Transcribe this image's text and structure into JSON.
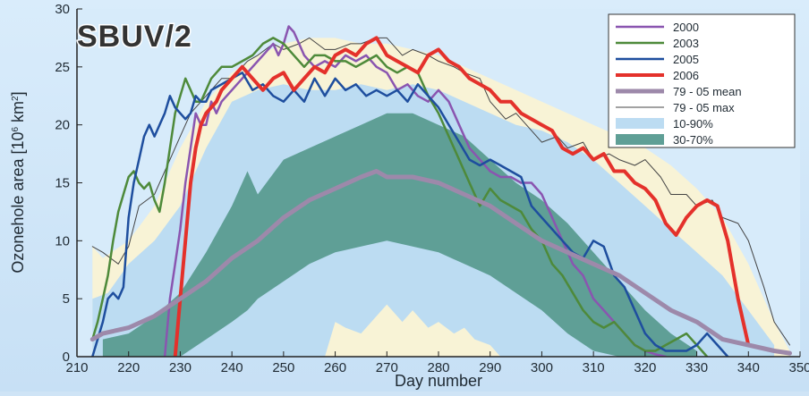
{
  "chart_data": {
    "type": "line",
    "title": "SBUV/2",
    "xlabel": "Day number",
    "ylabel": "Ozonehole area [10",
    "ylabel_sup": "6",
    "ylabel_unit": " km",
    "ylabel_sup2": "2",
    "ylabel_close": "]",
    "xlim": [
      210,
      350
    ],
    "ylim": [
      0,
      30
    ],
    "x_ticks": [
      210,
      220,
      230,
      240,
      250,
      260,
      270,
      280,
      290,
      300,
      310,
      320,
      330,
      340,
      350
    ],
    "y_ticks": [
      0,
      5,
      10,
      15,
      20,
      25,
      30
    ],
    "x_tick_labels": [
      "210",
      "220",
      "230",
      "240",
      "250",
      "260",
      "270",
      "280",
      "290",
      "300",
      "310",
      "320",
      "330",
      "340",
      "350"
    ],
    "y_tick_labels": [
      "0",
      "5",
      "10",
      "15",
      "20",
      "25",
      "30"
    ],
    "legend_position": "top-right",
    "legend": [
      {
        "label": "2000",
        "color": "#8a55b0",
        "kind": "line",
        "width": 2.5
      },
      {
        "label": "2003",
        "color": "#4e8a3a",
        "kind": "line",
        "width": 2.5
      },
      {
        "label": "2005",
        "color": "#1e4e9e",
        "kind": "line",
        "width": 2.5
      },
      {
        "label": "2006",
        "color": "#e4312b",
        "kind": "line",
        "width": 4
      },
      {
        "label": "79 - 05 mean",
        "color": "#9d89aa",
        "kind": "line",
        "width": 5
      },
      {
        "label": "79 - 05 max",
        "color": "#444444",
        "kind": "line",
        "width": 1
      },
      {
        "label": "10-90%",
        "color": "#bcdcf2",
        "kind": "box"
      },
      {
        "label": "30-70%",
        "color": "#5f9f96",
        "kind": "box"
      }
    ],
    "bands": [
      {
        "name": "Max envelope",
        "color": "#f8f3d6",
        "x": [
          213,
          215,
          220,
          225,
          230,
          235,
          240,
          245,
          250,
          255,
          260,
          265,
          270,
          275,
          280,
          285,
          290,
          295,
          300,
          305,
          310,
          315,
          320,
          325,
          330,
          335,
          340,
          345,
          348
        ],
        "upper": [
          9.5,
          8.5,
          10,
          13,
          18,
          22,
          24.5,
          26,
          27,
          27.5,
          27.5,
          27,
          27,
          26.5,
          26,
          25,
          24,
          23,
          22,
          21,
          20,
          19,
          18,
          16.5,
          14.5,
          12,
          8,
          3,
          0.5
        ],
        "lower": [
          0,
          0,
          0,
          0,
          0,
          0,
          0,
          0,
          0,
          0,
          0,
          0,
          0,
          0,
          0,
          0,
          0,
          0,
          0,
          0,
          0,
          0,
          0,
          0,
          0,
          0,
          0,
          0,
          0
        ]
      },
      {
        "name": "10-90%",
        "color": "#bcdcf2",
        "x": [
          213,
          216,
          220,
          225,
          230,
          235,
          240,
          245,
          250,
          255,
          260,
          265,
          270,
          275,
          280,
          285,
          290,
          295,
          300,
          305,
          310,
          315,
          320,
          325,
          330,
          335,
          340,
          345
        ],
        "upper": [
          5,
          5.5,
          8,
          10,
          13,
          18,
          22,
          23,
          23.5,
          23,
          23,
          23.5,
          23,
          23.5,
          23,
          22,
          21,
          20,
          19.5,
          18.5,
          17,
          15,
          13,
          11,
          9,
          7,
          4,
          1
        ],
        "lower": [
          0,
          0,
          0,
          0,
          0,
          0,
          0,
          0,
          0,
          0,
          0,
          0,
          0.5,
          0,
          0,
          0,
          0,
          0,
          0,
          0,
          0,
          0,
          0,
          0,
          0,
          0,
          0,
          0
        ]
      },
      {
        "name": "30-70%",
        "color": "#5f9f96",
        "x": [
          215,
          220,
          225,
          230,
          235,
          240,
          243,
          245,
          250,
          255,
          260,
          265,
          270,
          275,
          280,
          285,
          290,
          295,
          300,
          305,
          310,
          315,
          320,
          325,
          330
        ],
        "upper": [
          1.5,
          2,
          3.5,
          5.5,
          9,
          13,
          16,
          14,
          17,
          18,
          19,
          20,
          21,
          21,
          20,
          19,
          17,
          15,
          13.5,
          11.5,
          9,
          6.5,
          4,
          2,
          0.5
        ],
        "lower": [
          0,
          0,
          0,
          0,
          1.5,
          3,
          4,
          5,
          6.5,
          8,
          9,
          9.5,
          10,
          9.5,
          9,
          8,
          7,
          5.5,
          4,
          2,
          0.5,
          0,
          0,
          0,
          0
        ]
      },
      {
        "name": "Min",
        "color": "#f8f3d6",
        "x": [
          258,
          260,
          262,
          265,
          268,
          270,
          273,
          275,
          278,
          280,
          283,
          285,
          287,
          290,
          292
        ],
        "upper": [
          0,
          3,
          2.5,
          2,
          3.5,
          4.5,
          3,
          4,
          2.5,
          3,
          2,
          2.5,
          1.5,
          1,
          0
        ],
        "lower": [
          0,
          0,
          0,
          0,
          0,
          0,
          0,
          0,
          0,
          0,
          0,
          0,
          0,
          0,
          0
        ]
      }
    ],
    "series": [
      {
        "name": "79 - 05 max",
        "color": "#444444",
        "width": 1,
        "x": [
          213,
          215,
          218,
          220,
          222,
          225,
          228,
          230,
          232,
          235,
          238,
          240,
          243,
          245,
          248,
          250,
          253,
          255,
          258,
          260,
          263,
          265,
          268,
          270,
          273,
          275,
          278,
          280,
          283,
          285,
          288,
          290,
          293,
          295,
          298,
          300,
          303,
          305,
          308,
          310,
          313,
          315,
          318,
          320,
          323,
          325,
          328,
          330,
          333,
          335,
          338,
          340,
          343,
          345,
          348
        ],
        "y": [
          9.5,
          9,
          8,
          9.5,
          13,
          14,
          17,
          19,
          21,
          22.5,
          24,
          24,
          25.5,
          26,
          27,
          26.5,
          27,
          27.5,
          26.5,
          26.5,
          27,
          27,
          27.5,
          27.5,
          26,
          26.5,
          26,
          25.5,
          25,
          24.5,
          24,
          22,
          20.5,
          21,
          19.5,
          18.5,
          19,
          18,
          18.5,
          17,
          17.5,
          17,
          16.5,
          17,
          15.5,
          14,
          14,
          13,
          13.5,
          12,
          11.5,
          10,
          6,
          3,
          1
        ]
      },
      {
        "name": "2000",
        "color": "#8a55b0",
        "width": 2.5,
        "x": [
          227,
          228,
          229,
          230,
          231,
          232,
          233,
          234,
          235,
          236,
          237,
          238,
          240,
          242,
          244,
          246,
          248,
          249,
          250,
          251,
          252,
          253,
          254,
          256,
          258,
          260,
          262,
          264,
          266,
          268,
          270,
          272,
          274,
          276,
          278,
          280,
          282,
          284,
          286,
          288,
          290,
          292,
          294,
          296,
          298,
          300,
          302,
          304,
          306,
          308,
          310,
          312,
          314,
          316,
          318,
          320,
          322,
          324
        ],
        "y": [
          0,
          5,
          8,
          11,
          15,
          18,
          21,
          20,
          20,
          22,
          21,
          22,
          23,
          24,
          25,
          26,
          27,
          26,
          27,
          28.5,
          28,
          27,
          26,
          25,
          25.5,
          25,
          26,
          25.5,
          26,
          25,
          24.5,
          23,
          23.5,
          22.5,
          22,
          23,
          22,
          20,
          18,
          17,
          16,
          15.5,
          15.5,
          15,
          15,
          14,
          12,
          10,
          8,
          7,
          5,
          4,
          3,
          2,
          1,
          0.5,
          0.2,
          0
        ]
      },
      {
        "name": "2003",
        "color": "#4e8a3a",
        "width": 2.5,
        "x": [
          213,
          214,
          215,
          216,
          217,
          218,
          219,
          220,
          221,
          222,
          223,
          224,
          225,
          226,
          227,
          228,
          229,
          230,
          231,
          232,
          233,
          234,
          235,
          236,
          238,
          240,
          242,
          244,
          246,
          248,
          250,
          252,
          254,
          256,
          258,
          260,
          262,
          264,
          266,
          268,
          270,
          272,
          274,
          276,
          278,
          280,
          282,
          284,
          286,
          288,
          290,
          292,
          294,
          296,
          298,
          300,
          302,
          304,
          306,
          308,
          310,
          312,
          314,
          316,
          318,
          320,
          322,
          324,
          326,
          328,
          330,
          332
        ],
        "y": [
          1.5,
          3,
          5,
          7,
          10,
          12.5,
          14,
          15.5,
          16,
          15,
          14.5,
          15,
          13.5,
          12.5,
          15,
          18,
          21,
          22.5,
          24,
          23,
          22,
          22,
          23,
          24,
          25,
          25,
          25.5,
          26,
          27,
          27.5,
          27,
          26,
          25,
          26,
          26,
          25.5,
          25.5,
          25,
          25.5,
          26,
          25,
          24.5,
          25,
          24.5,
          22.5,
          21,
          19,
          17,
          15,
          13,
          14.5,
          13.5,
          13,
          12.5,
          11,
          10,
          8,
          7,
          5.5,
          4,
          3,
          2.5,
          3,
          2,
          1,
          0.5,
          0.5,
          1,
          1.5,
          2,
          1,
          0
        ]
      },
      {
        "name": "2005",
        "color": "#1e4e9e",
        "width": 2.5,
        "x": [
          213,
          214,
          215,
          216,
          217,
          218,
          219,
          220,
          221,
          222,
          223,
          224,
          225,
          226,
          227,
          228,
          229,
          230,
          231,
          232,
          233,
          234,
          235,
          236,
          238,
          240,
          242,
          244,
          246,
          248,
          250,
          252,
          254,
          256,
          258,
          260,
          262,
          264,
          266,
          268,
          270,
          272,
          274,
          276,
          278,
          280,
          282,
          284,
          286,
          288,
          290,
          292,
          294,
          296,
          298,
          300,
          302,
          304,
          306,
          308,
          310,
          312,
          314,
          316,
          318,
          320,
          322,
          324,
          326,
          328,
          330,
          332,
          334,
          336
        ],
        "y": [
          0,
          1.5,
          3,
          5,
          5.5,
          5,
          6,
          12,
          15,
          17,
          19,
          20,
          19,
          20,
          21,
          22.5,
          21.5,
          21,
          20.5,
          21,
          22.5,
          22,
          22,
          23,
          23.5,
          24,
          24.5,
          23,
          23.5,
          22.5,
          22,
          23,
          22,
          24,
          22.5,
          24,
          23,
          23.5,
          22.5,
          23,
          22.5,
          23,
          22,
          23.5,
          22.5,
          21.5,
          20,
          18.5,
          17,
          16.5,
          17,
          16.5,
          16,
          15.5,
          13,
          12,
          11,
          10,
          9,
          8.5,
          10,
          9.5,
          7,
          6,
          4,
          2,
          1,
          0.5,
          0.5,
          0.5,
          1,
          2,
          1,
          0
        ]
      },
      {
        "name": "2006",
        "color": "#e4312b",
        "width": 4,
        "x": [
          229,
          230,
          231,
          232,
          233,
          234,
          235,
          236,
          237,
          238,
          240,
          242,
          244,
          246,
          248,
          250,
          252,
          254,
          256,
          258,
          260,
          262,
          264,
          266,
          268,
          270,
          272,
          274,
          276,
          278,
          280,
          282,
          284,
          286,
          288,
          290,
          292,
          294,
          296,
          298,
          300,
          302,
          304,
          306,
          308,
          310,
          312,
          314,
          316,
          318,
          320,
          322,
          324,
          326,
          328,
          330,
          332,
          334,
          336,
          338,
          340
        ],
        "y": [
          0,
          5,
          10,
          15,
          18,
          20,
          21,
          21.5,
          22,
          23,
          24,
          25,
          24,
          23,
          24,
          24.5,
          23,
          24,
          25,
          24.5,
          26,
          26.5,
          26,
          27,
          27.5,
          26,
          25.5,
          25,
          24.5,
          26,
          26.5,
          25.5,
          25,
          24,
          23.5,
          23,
          22,
          22,
          21,
          20.5,
          20,
          19.5,
          18,
          17.5,
          18,
          17,
          17.5,
          16,
          16,
          15,
          14.5,
          13.5,
          11.5,
          10.5,
          12,
          13,
          13.5,
          13,
          10,
          5,
          1
        ]
      },
      {
        "name": "79 - 05 mean",
        "color": "#9d89aa",
        "width": 5,
        "x": [
          213,
          215,
          220,
          225,
          230,
          235,
          240,
          245,
          250,
          255,
          260,
          265,
          268,
          270,
          275,
          280,
          285,
          290,
          295,
          300,
          305,
          310,
          315,
          320,
          325,
          330,
          335,
          340,
          345,
          348
        ],
        "y": [
          1.5,
          2,
          2.5,
          3.5,
          5,
          6.5,
          8.5,
          10,
          12,
          13.5,
          14.5,
          15.5,
          16,
          15.5,
          15.5,
          15,
          14,
          13,
          11.5,
          10,
          9,
          8,
          7,
          5.5,
          4,
          3,
          1.5,
          1,
          0.5,
          0.3
        ]
      }
    ]
  }
}
